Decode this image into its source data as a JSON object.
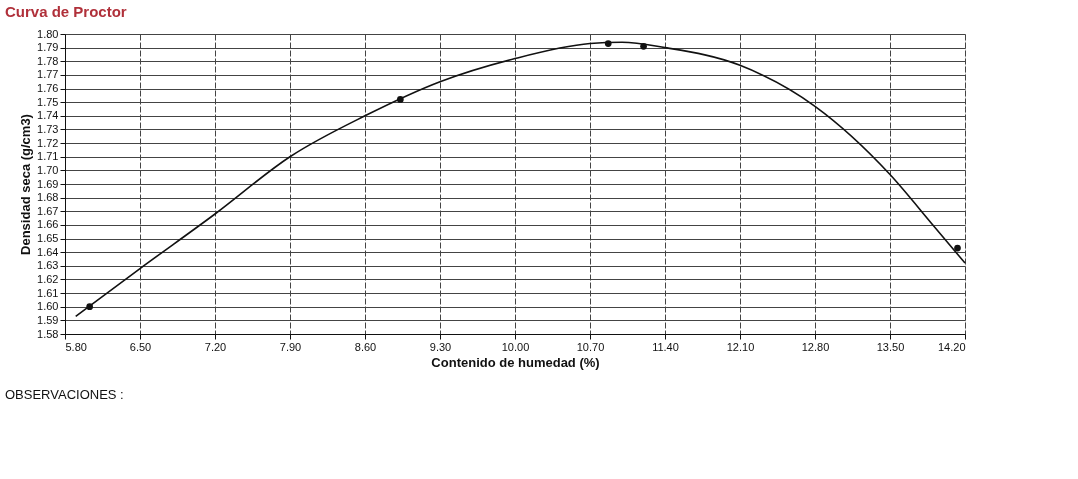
{
  "chart_data": {
    "type": "scatter",
    "title": "Curva de Proctor",
    "xlabel": "Contenido de humedad (%)",
    "ylabel": "Densidad seca (g/cm3)",
    "annotations": [
      "OBSERVACIONES :"
    ],
    "series": [
      {
        "color": "#111111",
        "marker": "circle",
        "x": [
          6.03,
          8.93,
          10.87,
          11.2,
          14.13
        ],
        "values": [
          1.6,
          1.752,
          1.793,
          1.791,
          1.643
        ]
      },
      {
        "type": "line",
        "color": "#111111",
        "line_style": "solid",
        "x": [
          5.9,
          6.5,
          7.2,
          7.9,
          8.6,
          9.3,
          10.0,
          10.7,
          11.0,
          11.4,
          12.1,
          12.8,
          13.5,
          13.9,
          14.2
        ],
        "values": [
          1.593,
          1.628,
          1.668,
          1.71,
          1.74,
          1.765,
          1.782,
          1.793,
          1.794,
          1.79,
          1.777,
          1.747,
          1.697,
          1.66,
          1.632
        ]
      }
    ],
    "xlim": [
      5.8,
      14.2
    ],
    "xticks": [
      {
        "value": 5.8,
        "label": "5.80"
      },
      {
        "value": 6.5,
        "label": "6.50"
      },
      {
        "value": 7.2,
        "label": "7.20"
      },
      {
        "value": 7.9,
        "label": "7.90"
      },
      {
        "value": 8.6,
        "label": "8.60"
      },
      {
        "value": 9.3,
        "label": "9.30"
      },
      {
        "value": 10.0,
        "label": "10.00"
      },
      {
        "value": 10.7,
        "label": "10.70"
      },
      {
        "value": 11.4,
        "label": "11.40"
      },
      {
        "value": 12.1,
        "label": "12.10"
      },
      {
        "value": 12.8,
        "label": "12.80"
      },
      {
        "value": 13.5,
        "label": "13.50"
      },
      {
        "value": 14.2,
        "label": "14.20"
      }
    ],
    "ylim": [
      1.58,
      1.8
    ],
    "yticks": [
      {
        "value": 1.58,
        "label": "1.58"
      },
      {
        "value": 1.59,
        "label": "1.59"
      },
      {
        "value": 1.6,
        "label": "1.60"
      },
      {
        "value": 1.61,
        "label": "1.61"
      },
      {
        "value": 1.62,
        "label": "1.62"
      },
      {
        "value": 1.63,
        "label": "1.63"
      },
      {
        "value": 1.64,
        "label": "1.64"
      },
      {
        "value": 1.65,
        "label": "1.65"
      },
      {
        "value": 1.66,
        "label": "1.66"
      },
      {
        "value": 1.67,
        "label": "1.67"
      },
      {
        "value": 1.68,
        "label": "1.68"
      },
      {
        "value": 1.69,
        "label": "1.69"
      },
      {
        "value": 1.7,
        "label": "1.70"
      },
      {
        "value": 1.71,
        "label": "1.71"
      },
      {
        "value": 1.72,
        "label": "1.72"
      },
      {
        "value": 1.73,
        "label": "1.73"
      },
      {
        "value": 1.74,
        "label": "1.74"
      },
      {
        "value": 1.75,
        "label": "1.75"
      },
      {
        "value": 1.76,
        "label": "1.76"
      },
      {
        "value": 1.77,
        "label": "1.77"
      },
      {
        "value": 1.78,
        "label": "1.78"
      },
      {
        "value": 1.79,
        "label": "1.79"
      },
      {
        "value": 1.8,
        "label": "1.80"
      }
    ],
    "grid": true
  }
}
